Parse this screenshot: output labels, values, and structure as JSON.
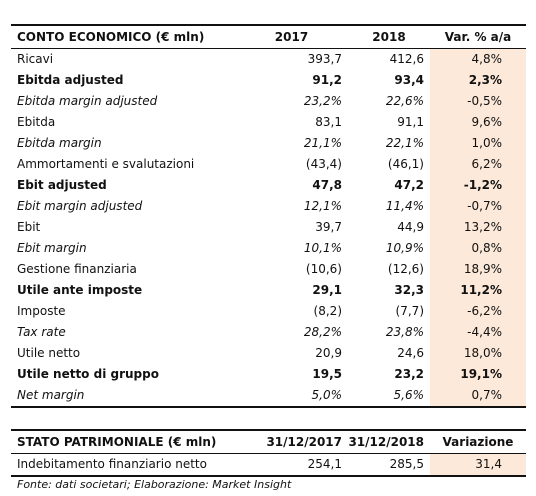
{
  "income_statement": {
    "header": {
      "label": "CONTO ECONOMICO (€ mln)",
      "c2017": "2017",
      "c2018": "2018",
      "var": "Var. % a/a"
    },
    "rows": [
      {
        "label": "Ricavi",
        "v2017": "393,7",
        "v2018": "412,6",
        "var": "4,8%",
        "style": "normal"
      },
      {
        "label": "Ebitda adjusted",
        "v2017": "91,2",
        "v2018": "93,4",
        "var": "2,3%",
        "style": "bold"
      },
      {
        "label": "Ebitda margin adjusted",
        "v2017": "23,2%",
        "v2018": "22,6%",
        "var": "-0,5%",
        "style": "italic"
      },
      {
        "label": "Ebitda",
        "v2017": "83,1",
        "v2018": "91,1",
        "var": "9,6%",
        "style": "normal"
      },
      {
        "label": "Ebitda margin",
        "v2017": "21,1%",
        "v2018": "22,1%",
        "var": "1,0%",
        "style": "italic"
      },
      {
        "label": "Ammortamenti e svalutazioni",
        "v2017": "(43,4)",
        "v2018": "(46,1)",
        "var": "6,2%",
        "style": "normal"
      },
      {
        "label": "Ebit adjusted",
        "v2017": "47,8",
        "v2018": "47,2",
        "var": "-1,2%",
        "style": "bold"
      },
      {
        "label": "Ebit margin adjusted",
        "v2017": "12,1%",
        "v2018": "11,4%",
        "var": "-0,7%",
        "style": "italic"
      },
      {
        "label": "Ebit",
        "v2017": "39,7",
        "v2018": "44,9",
        "var": "13,2%",
        "style": "normal"
      },
      {
        "label": "Ebit margin",
        "v2017": "10,1%",
        "v2018": "10,9%",
        "var": "0,8%",
        "style": "italic"
      },
      {
        "label": "Gestione finanziaria",
        "v2017": "(10,6)",
        "v2018": "(12,6)",
        "var": "18,9%",
        "style": "normal"
      },
      {
        "label": "Utile ante imposte",
        "v2017": "29,1",
        "v2018": "32,3",
        "var": "11,2%",
        "style": "bold"
      },
      {
        "label": "Imposte",
        "v2017": "(8,2)",
        "v2018": "(7,7)",
        "var": "-6,2%",
        "style": "normal"
      },
      {
        "label": "Tax rate",
        "v2017": "28,2%",
        "v2018": "23,8%",
        "var": "-4,4%",
        "style": "italic"
      },
      {
        "label": "Utile netto",
        "v2017": "20,9",
        "v2018": "24,6",
        "var": "18,0%",
        "style": "normal"
      },
      {
        "label": "Utile netto di gruppo",
        "v2017": "19,5",
        "v2018": "23,2",
        "var": "19,1%",
        "style": "bold"
      },
      {
        "label": "Net margin",
        "v2017": "5,0%",
        "v2018": "5,6%",
        "var": "0,7%",
        "style": "italic"
      }
    ]
  },
  "balance_sheet": {
    "header": {
      "label": "STATO PATRIMONIALE (€ mln)",
      "c2017": "31/12/2017",
      "c2018": "31/12/2018",
      "var": "Variazione"
    },
    "rows": [
      {
        "label": "Indebitamento finanziario netto",
        "v2017": "254,1",
        "v2018": "285,5",
        "var": "31,4",
        "style": "normal"
      }
    ]
  },
  "source": "Fonte: dati societari; Elaborazione: Market Insight",
  "colors": {
    "highlight": "#fde9d9",
    "rule": "#111111"
  }
}
